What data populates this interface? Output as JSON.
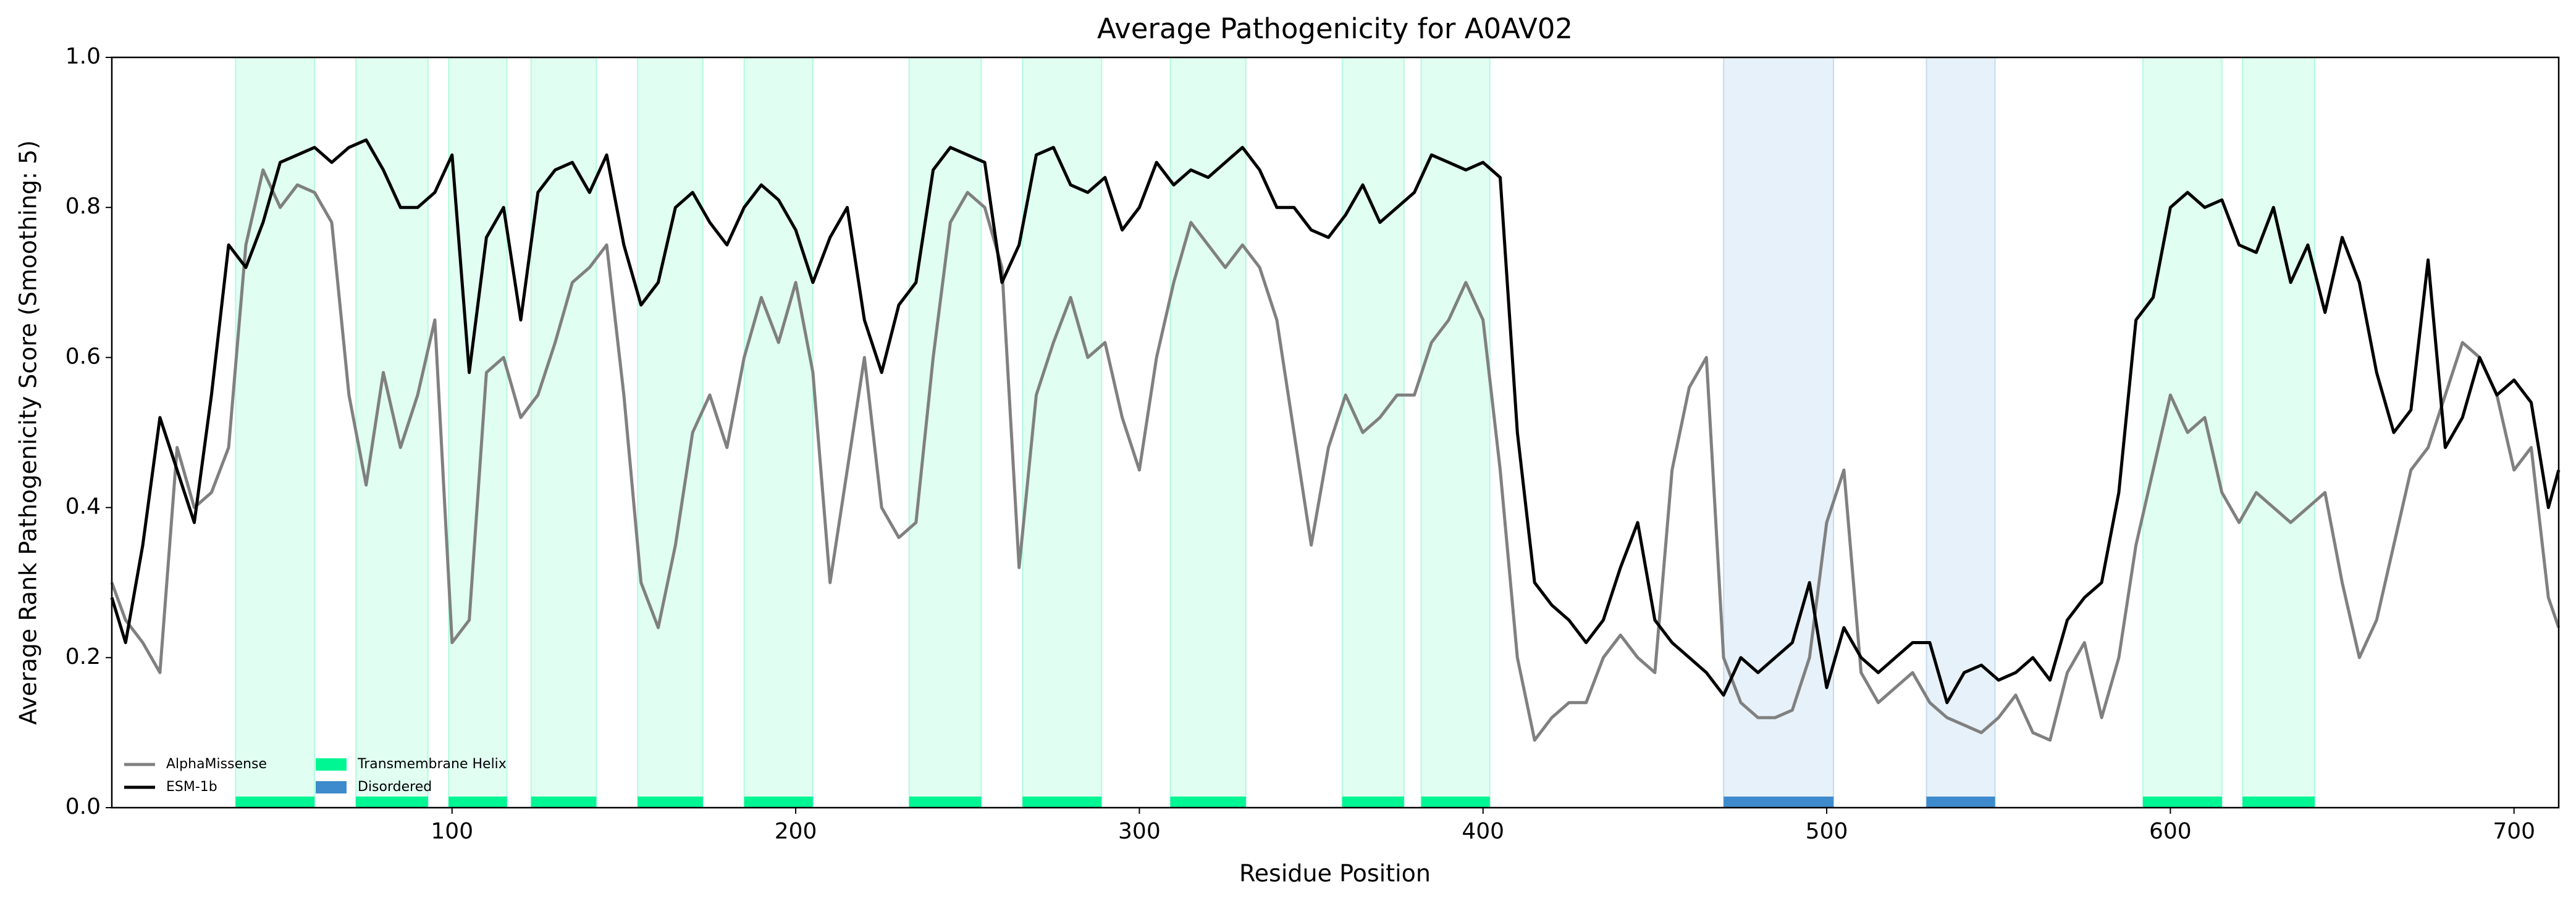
{
  "chart_data": {
    "type": "line",
    "title": "Average Pathogenicity for A0AV02",
    "x_label": "Residue Position",
    "y_label": "Average Rank Pathogenicity Score (Smoothing: 5)",
    "xlim": [
      1,
      713
    ],
    "ylim": [
      0,
      1
    ],
    "xticks": [
      100,
      200,
      300,
      400,
      500,
      600,
      700
    ],
    "yticks": [
      {
        "value": 0,
        "label": "0.0"
      },
      0.2,
      0.4,
      0.6,
      0.8,
      {
        "value": 1,
        "label": "1.0"
      }
    ],
    "legend": "lower left",
    "x": [
      1,
      5,
      10,
      15,
      20,
      25,
      30,
      35,
      40,
      45,
      50,
      55,
      60,
      65,
      70,
      75,
      80,
      85,
      90,
      95,
      100,
      105,
      110,
      115,
      120,
      125,
      130,
      135,
      140,
      145,
      150,
      155,
      160,
      165,
      170,
      175,
      180,
      185,
      190,
      195,
      200,
      205,
      210,
      215,
      220,
      225,
      230,
      235,
      240,
      245,
      250,
      255,
      260,
      265,
      270,
      275,
      280,
      285,
      290,
      295,
      300,
      305,
      310,
      315,
      320,
      325,
      330,
      335,
      340,
      345,
      350,
      355,
      360,
      365,
      370,
      375,
      380,
      385,
      390,
      395,
      400,
      405,
      410,
      415,
      420,
      425,
      430,
      435,
      440,
      445,
      450,
      455,
      460,
      465,
      470,
      475,
      480,
      485,
      490,
      495,
      500,
      505,
      510,
      515,
      520,
      525,
      530,
      535,
      540,
      545,
      550,
      555,
      560,
      565,
      570,
      575,
      580,
      585,
      590,
      595,
      600,
      605,
      610,
      615,
      620,
      625,
      630,
      635,
      640,
      645,
      650,
      655,
      660,
      665,
      670,
      675,
      680,
      685,
      690,
      695,
      700,
      705,
      710,
      713
    ],
    "series": [
      {
        "name": "AlphaMissense",
        "color": "#808080",
        "values": [
          0.3,
          0.25,
          0.22,
          0.18,
          0.48,
          0.4,
          0.42,
          0.48,
          0.75,
          0.85,
          0.8,
          0.83,
          0.82,
          0.78,
          0.55,
          0.43,
          0.58,
          0.48,
          0.55,
          0.65,
          0.22,
          0.25,
          0.58,
          0.6,
          0.52,
          0.55,
          0.62,
          0.7,
          0.72,
          0.75,
          0.55,
          0.3,
          0.24,
          0.35,
          0.5,
          0.55,
          0.48,
          0.6,
          0.68,
          0.62,
          0.7,
          0.58,
          0.3,
          0.45,
          0.6,
          0.4,
          0.36,
          0.38,
          0.6,
          0.78,
          0.82,
          0.8,
          0.72,
          0.32,
          0.55,
          0.62,
          0.68,
          0.6,
          0.62,
          0.52,
          0.45,
          0.6,
          0.7,
          0.78,
          0.75,
          0.72,
          0.75,
          0.72,
          0.65,
          0.5,
          0.35,
          0.48,
          0.55,
          0.5,
          0.52,
          0.55,
          0.55,
          0.62,
          0.65,
          0.7,
          0.65,
          0.45,
          0.2,
          0.09,
          0.12,
          0.14,
          0.14,
          0.2,
          0.23,
          0.2,
          0.18,
          0.45,
          0.56,
          0.6,
          0.2,
          0.14,
          0.12,
          0.12,
          0.13,
          0.2,
          0.38,
          0.45,
          0.18,
          0.14,
          0.16,
          0.18,
          0.14,
          0.12,
          0.11,
          0.1,
          0.12,
          0.15,
          0.1,
          0.09,
          0.18,
          0.22,
          0.12,
          0.2,
          0.35,
          0.45,
          0.55,
          0.5,
          0.52,
          0.42,
          0.38,
          0.42,
          0.4,
          0.38,
          0.4,
          0.42,
          0.3,
          0.2,
          0.25,
          0.35,
          0.45,
          0.48,
          0.55,
          0.62,
          0.6,
          0.55,
          0.45,
          0.48,
          0.28,
          0.24
        ]
      },
      {
        "name": "ESM-1b",
        "color": "#000000",
        "values": [
          0.28,
          0.22,
          0.35,
          0.52,
          0.45,
          0.38,
          0.55,
          0.75,
          0.72,
          0.78,
          0.86,
          0.87,
          0.88,
          0.86,
          0.88,
          0.89,
          0.85,
          0.8,
          0.8,
          0.82,
          0.87,
          0.58,
          0.76,
          0.8,
          0.65,
          0.82,
          0.85,
          0.86,
          0.82,
          0.87,
          0.75,
          0.67,
          0.7,
          0.8,
          0.82,
          0.78,
          0.75,
          0.8,
          0.83,
          0.81,
          0.77,
          0.7,
          0.76,
          0.8,
          0.65,
          0.58,
          0.67,
          0.7,
          0.85,
          0.88,
          0.87,
          0.86,
          0.7,
          0.75,
          0.87,
          0.88,
          0.83,
          0.82,
          0.84,
          0.77,
          0.8,
          0.86,
          0.83,
          0.85,
          0.84,
          0.86,
          0.88,
          0.85,
          0.8,
          0.8,
          0.77,
          0.76,
          0.79,
          0.83,
          0.78,
          0.8,
          0.82,
          0.87,
          0.86,
          0.85,
          0.86,
          0.84,
          0.5,
          0.3,
          0.27,
          0.25,
          0.22,
          0.25,
          0.32,
          0.38,
          0.25,
          0.22,
          0.2,
          0.18,
          0.15,
          0.2,
          0.18,
          0.2,
          0.22,
          0.3,
          0.16,
          0.24,
          0.2,
          0.18,
          0.2,
          0.22,
          0.22,
          0.14,
          0.18,
          0.19,
          0.17,
          0.18,
          0.2,
          0.17,
          0.25,
          0.28,
          0.3,
          0.42,
          0.65,
          0.68,
          0.8,
          0.82,
          0.8,
          0.81,
          0.75,
          0.74,
          0.8,
          0.7,
          0.75,
          0.66,
          0.76,
          0.7,
          0.58,
          0.5,
          0.53,
          0.73,
          0.48,
          0.52,
          0.6,
          0.55,
          0.57,
          0.54,
          0.4,
          0.45
        ]
      }
    ],
    "regions": [
      {
        "name": "Transmembrane Helix",
        "color": "#00f593",
        "spans": [
          [
            37,
            60
          ],
          [
            72,
            93
          ],
          [
            99,
            116
          ],
          [
            123,
            142
          ],
          [
            154,
            173
          ],
          [
            185,
            205
          ],
          [
            233,
            254
          ],
          [
            266,
            289
          ],
          [
            309,
            331
          ],
          [
            359,
            377
          ],
          [
            382,
            402
          ],
          [
            592,
            615
          ],
          [
            621,
            642
          ]
        ]
      },
      {
        "name": "Disordered",
        "color": "#3d8bcd",
        "spans": [
          [
            470,
            502
          ],
          [
            529,
            549
          ]
        ]
      }
    ]
  }
}
